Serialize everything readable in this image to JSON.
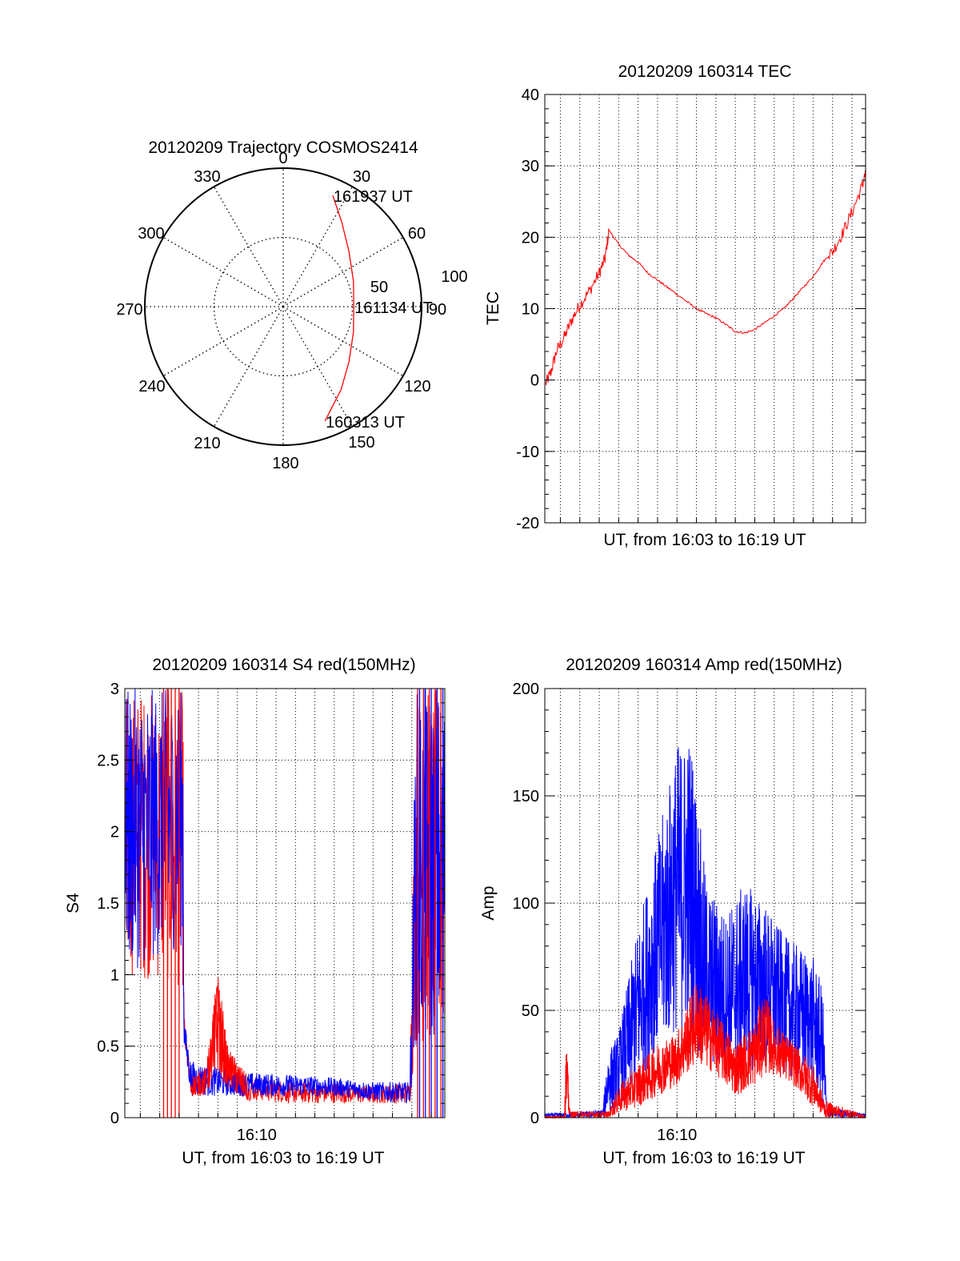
{
  "chart_data": [
    {
      "id": "trajectory",
      "type": "polar",
      "title": "20120209 Trajectory COSMOS2414",
      "azimuth_labels": [
        "0",
        "30",
        "60",
        "90",
        "120",
        "150",
        "180",
        "210",
        "240",
        "270",
        "300",
        "330"
      ],
      "radius_labels": [
        "50",
        "100"
      ],
      "rlim": [
        0,
        100
      ],
      "grid": true,
      "series": [
        {
          "color": "#ff0000",
          "points": [
            {
              "az": 24,
              "zen": 88
            },
            {
              "az": 35,
              "zen": 74
            },
            {
              "az": 50,
              "zen": 62
            },
            {
              "az": 70,
              "zen": 54
            },
            {
              "az": 90,
              "zen": 51
            },
            {
              "az": 110,
              "zen": 54
            },
            {
              "az": 130,
              "zen": 62
            },
            {
              "az": 145,
              "zen": 73
            },
            {
              "az": 160,
              "zen": 88
            }
          ]
        }
      ],
      "annotations": [
        {
          "text": "161937 UT",
          "az": 24,
          "zen": 88
        },
        {
          "text": "161134 UT",
          "az": 90,
          "zen": 51
        },
        {
          "text": "160313 UT",
          "az": 160,
          "zen": 88
        }
      ]
    },
    {
      "id": "tec",
      "type": "line",
      "title": "20120209 160314 TEC",
      "xlabel": "UT, from 16:03 to 16:19 UT",
      "ylabel": "TEC",
      "xlim_minutes": [
        3.2,
        19.7
      ],
      "ylim": [
        -20,
        40
      ],
      "yticks": [
        "-20",
        "-10",
        "0",
        "10",
        "20",
        "30",
        "40"
      ],
      "grid": true,
      "series": [
        {
          "color": "#ff0000",
          "x_minutes": [
            3.25,
            3.5,
            3.8,
            4.2,
            4.6,
            5.0,
            5.5,
            6.0,
            6.3,
            6.5,
            7.0,
            7.5,
            8.0,
            8.5,
            9.0,
            9.5,
            10.0,
            10.5,
            11.0,
            11.5,
            12.0,
            12.5,
            13.0,
            13.5,
            14.0,
            14.5,
            15.0,
            15.5,
            16.0,
            16.5,
            17.0,
            17.5,
            18.0,
            18.5,
            19.0,
            19.5,
            19.7
          ],
          "y": [
            -0.5,
            1.0,
            4.0,
            6.0,
            8.5,
            10.5,
            12.5,
            15.0,
            17.0,
            21.0,
            19.0,
            17.5,
            16.5,
            15.0,
            14.0,
            13.0,
            12.0,
            11.0,
            10.0,
            9.3,
            8.7,
            7.8,
            6.8,
            6.6,
            7.1,
            8.0,
            9.0,
            10.0,
            11.5,
            13.0,
            14.5,
            16.5,
            18.0,
            20.5,
            23.5,
            27.0,
            29.0
          ]
        }
      ]
    },
    {
      "id": "s4",
      "type": "line",
      "title": "20120209 160314 S4 red(150MHz)",
      "xlabel": "UT, from 16:03 to 16:19 UT",
      "ylabel": "S4",
      "xlim_minutes": [
        3.2,
        19.7
      ],
      "ylim": [
        0,
        3
      ],
      "yticks": [
        "0",
        "0.5",
        "1",
        "1.5",
        "2",
        "2.5",
        "3"
      ],
      "xticks": [
        {
          "value": 10,
          "label": "16:10"
        }
      ],
      "grid": true,
      "series": [
        {
          "color": "#ff0000",
          "noise_band": [
            {
              "x": 3.2,
              "low": 1.0,
              "high": 3.0
            },
            {
              "x": 6.2,
              "low": 0.9,
              "high": 3.0
            },
            {
              "x": 6.25,
              "low": 0.5,
              "high": 0.75
            },
            {
              "x": 6.6,
              "low": 0.15,
              "high": 0.3
            },
            {
              "x": 7.4,
              "low": 0.15,
              "high": 0.35
            },
            {
              "x": 8.0,
              "low": 0.3,
              "high": 1.05
            },
            {
              "x": 8.5,
              "low": 0.2,
              "high": 0.5
            },
            {
              "x": 9.5,
              "low": 0.12,
              "high": 0.3
            },
            {
              "x": 12.0,
              "low": 0.1,
              "high": 0.25
            },
            {
              "x": 14.0,
              "low": 0.1,
              "high": 0.25
            },
            {
              "x": 16.0,
              "low": 0.1,
              "high": 0.22
            },
            {
              "x": 17.9,
              "low": 0.1,
              "high": 0.25
            },
            {
              "x": 18.2,
              "low": 0.5,
              "high": 3.0
            },
            {
              "x": 19.7,
              "low": 0.5,
              "high": 3.0
            }
          ],
          "spikes_x_minutes": [
            5.2,
            5.4,
            5.6,
            5.8,
            6.0,
            18.3,
            18.6,
            18.9,
            19.2,
            19.5
          ]
        },
        {
          "color": "#0000ff",
          "noise_band": [
            {
              "x": 3.2,
              "low": 1.0,
              "high": 3.0
            },
            {
              "x": 6.2,
              "low": 1.2,
              "high": 3.0
            },
            {
              "x": 6.25,
              "low": 0.5,
              "high": 0.7
            },
            {
              "x": 6.6,
              "low": 0.15,
              "high": 0.4
            },
            {
              "x": 8.0,
              "low": 0.15,
              "high": 0.35
            },
            {
              "x": 9.0,
              "low": 0.15,
              "high": 0.32
            },
            {
              "x": 12.0,
              "low": 0.15,
              "high": 0.3
            },
            {
              "x": 14.0,
              "low": 0.15,
              "high": 0.28
            },
            {
              "x": 16.0,
              "low": 0.12,
              "high": 0.25
            },
            {
              "x": 17.9,
              "low": 0.1,
              "high": 0.25
            },
            {
              "x": 18.2,
              "low": 0.5,
              "high": 3.0
            },
            {
              "x": 19.7,
              "low": 0.5,
              "high": 3.0
            }
          ],
          "spikes_x_minutes": [
            18.4,
            18.7,
            19.0,
            19.3,
            19.6
          ]
        }
      ]
    },
    {
      "id": "amp",
      "type": "line",
      "title": "20120209 160314 Amp red(150MHz)",
      "xlabel": "UT, from 16:03 to 16:19 UT",
      "ylabel": "Amp",
      "xlim_minutes": [
        3.2,
        19.7
      ],
      "ylim": [
        0,
        200
      ],
      "yticks": [
        "0",
        "50",
        "100",
        "150",
        "200"
      ],
      "xticks": [
        {
          "value": 10,
          "label": "16:10"
        }
      ],
      "grid": true,
      "series": [
        {
          "color": "#0000ff",
          "noise_band": [
            {
              "x": 3.2,
              "low": 0,
              "high": 2
            },
            {
              "x": 5.5,
              "low": 0,
              "high": 3
            },
            {
              "x": 6.2,
              "low": 0,
              "high": 4
            },
            {
              "x": 6.4,
              "low": 2,
              "high": 30
            },
            {
              "x": 7.0,
              "low": 5,
              "high": 40
            },
            {
              "x": 8.0,
              "low": 15,
              "high": 90
            },
            {
              "x": 9.0,
              "low": 30,
              "high": 130
            },
            {
              "x": 10.0,
              "low": 40,
              "high": 175
            },
            {
              "x": 10.7,
              "low": 35,
              "high": 180
            },
            {
              "x": 11.5,
              "low": 25,
              "high": 110
            },
            {
              "x": 12.5,
              "low": 20,
              "high": 95
            },
            {
              "x": 13.5,
              "low": 20,
              "high": 110
            },
            {
              "x": 14.5,
              "low": 25,
              "high": 100
            },
            {
              "x": 15.5,
              "low": 20,
              "high": 85
            },
            {
              "x": 17.0,
              "low": 15,
              "high": 75
            },
            {
              "x": 17.5,
              "low": 5,
              "high": 60
            },
            {
              "x": 17.7,
              "low": 0,
              "high": 5
            },
            {
              "x": 19.7,
              "low": 0,
              "high": 2
            }
          ]
        },
        {
          "color": "#ff0000",
          "noise_band": [
            {
              "x": 3.2,
              "low": 0,
              "high": 1
            },
            {
              "x": 4.2,
              "low": 0,
              "high": 1
            },
            {
              "x": 4.3,
              "low": 0,
              "high": 38
            },
            {
              "x": 4.5,
              "low": 0,
              "high": 3
            },
            {
              "x": 6.5,
              "low": 0,
              "high": 3
            },
            {
              "x": 7.0,
              "low": 2,
              "high": 15
            },
            {
              "x": 8.0,
              "low": 5,
              "high": 25
            },
            {
              "x": 9.0,
              "low": 10,
              "high": 35
            },
            {
              "x": 10.0,
              "low": 15,
              "high": 40
            },
            {
              "x": 11.0,
              "low": 25,
              "high": 65
            },
            {
              "x": 12.0,
              "low": 20,
              "high": 50
            },
            {
              "x": 13.0,
              "low": 10,
              "high": 35
            },
            {
              "x": 14.0,
              "low": 15,
              "high": 45
            },
            {
              "x": 14.5,
              "low": 20,
              "high": 60
            },
            {
              "x": 15.0,
              "low": 20,
              "high": 45
            },
            {
              "x": 16.0,
              "low": 15,
              "high": 35
            },
            {
              "x": 17.0,
              "low": 5,
              "high": 25
            },
            {
              "x": 17.6,
              "low": 0,
              "high": 8
            },
            {
              "x": 19.7,
              "low": 0,
              "high": 1
            }
          ]
        }
      ]
    }
  ]
}
